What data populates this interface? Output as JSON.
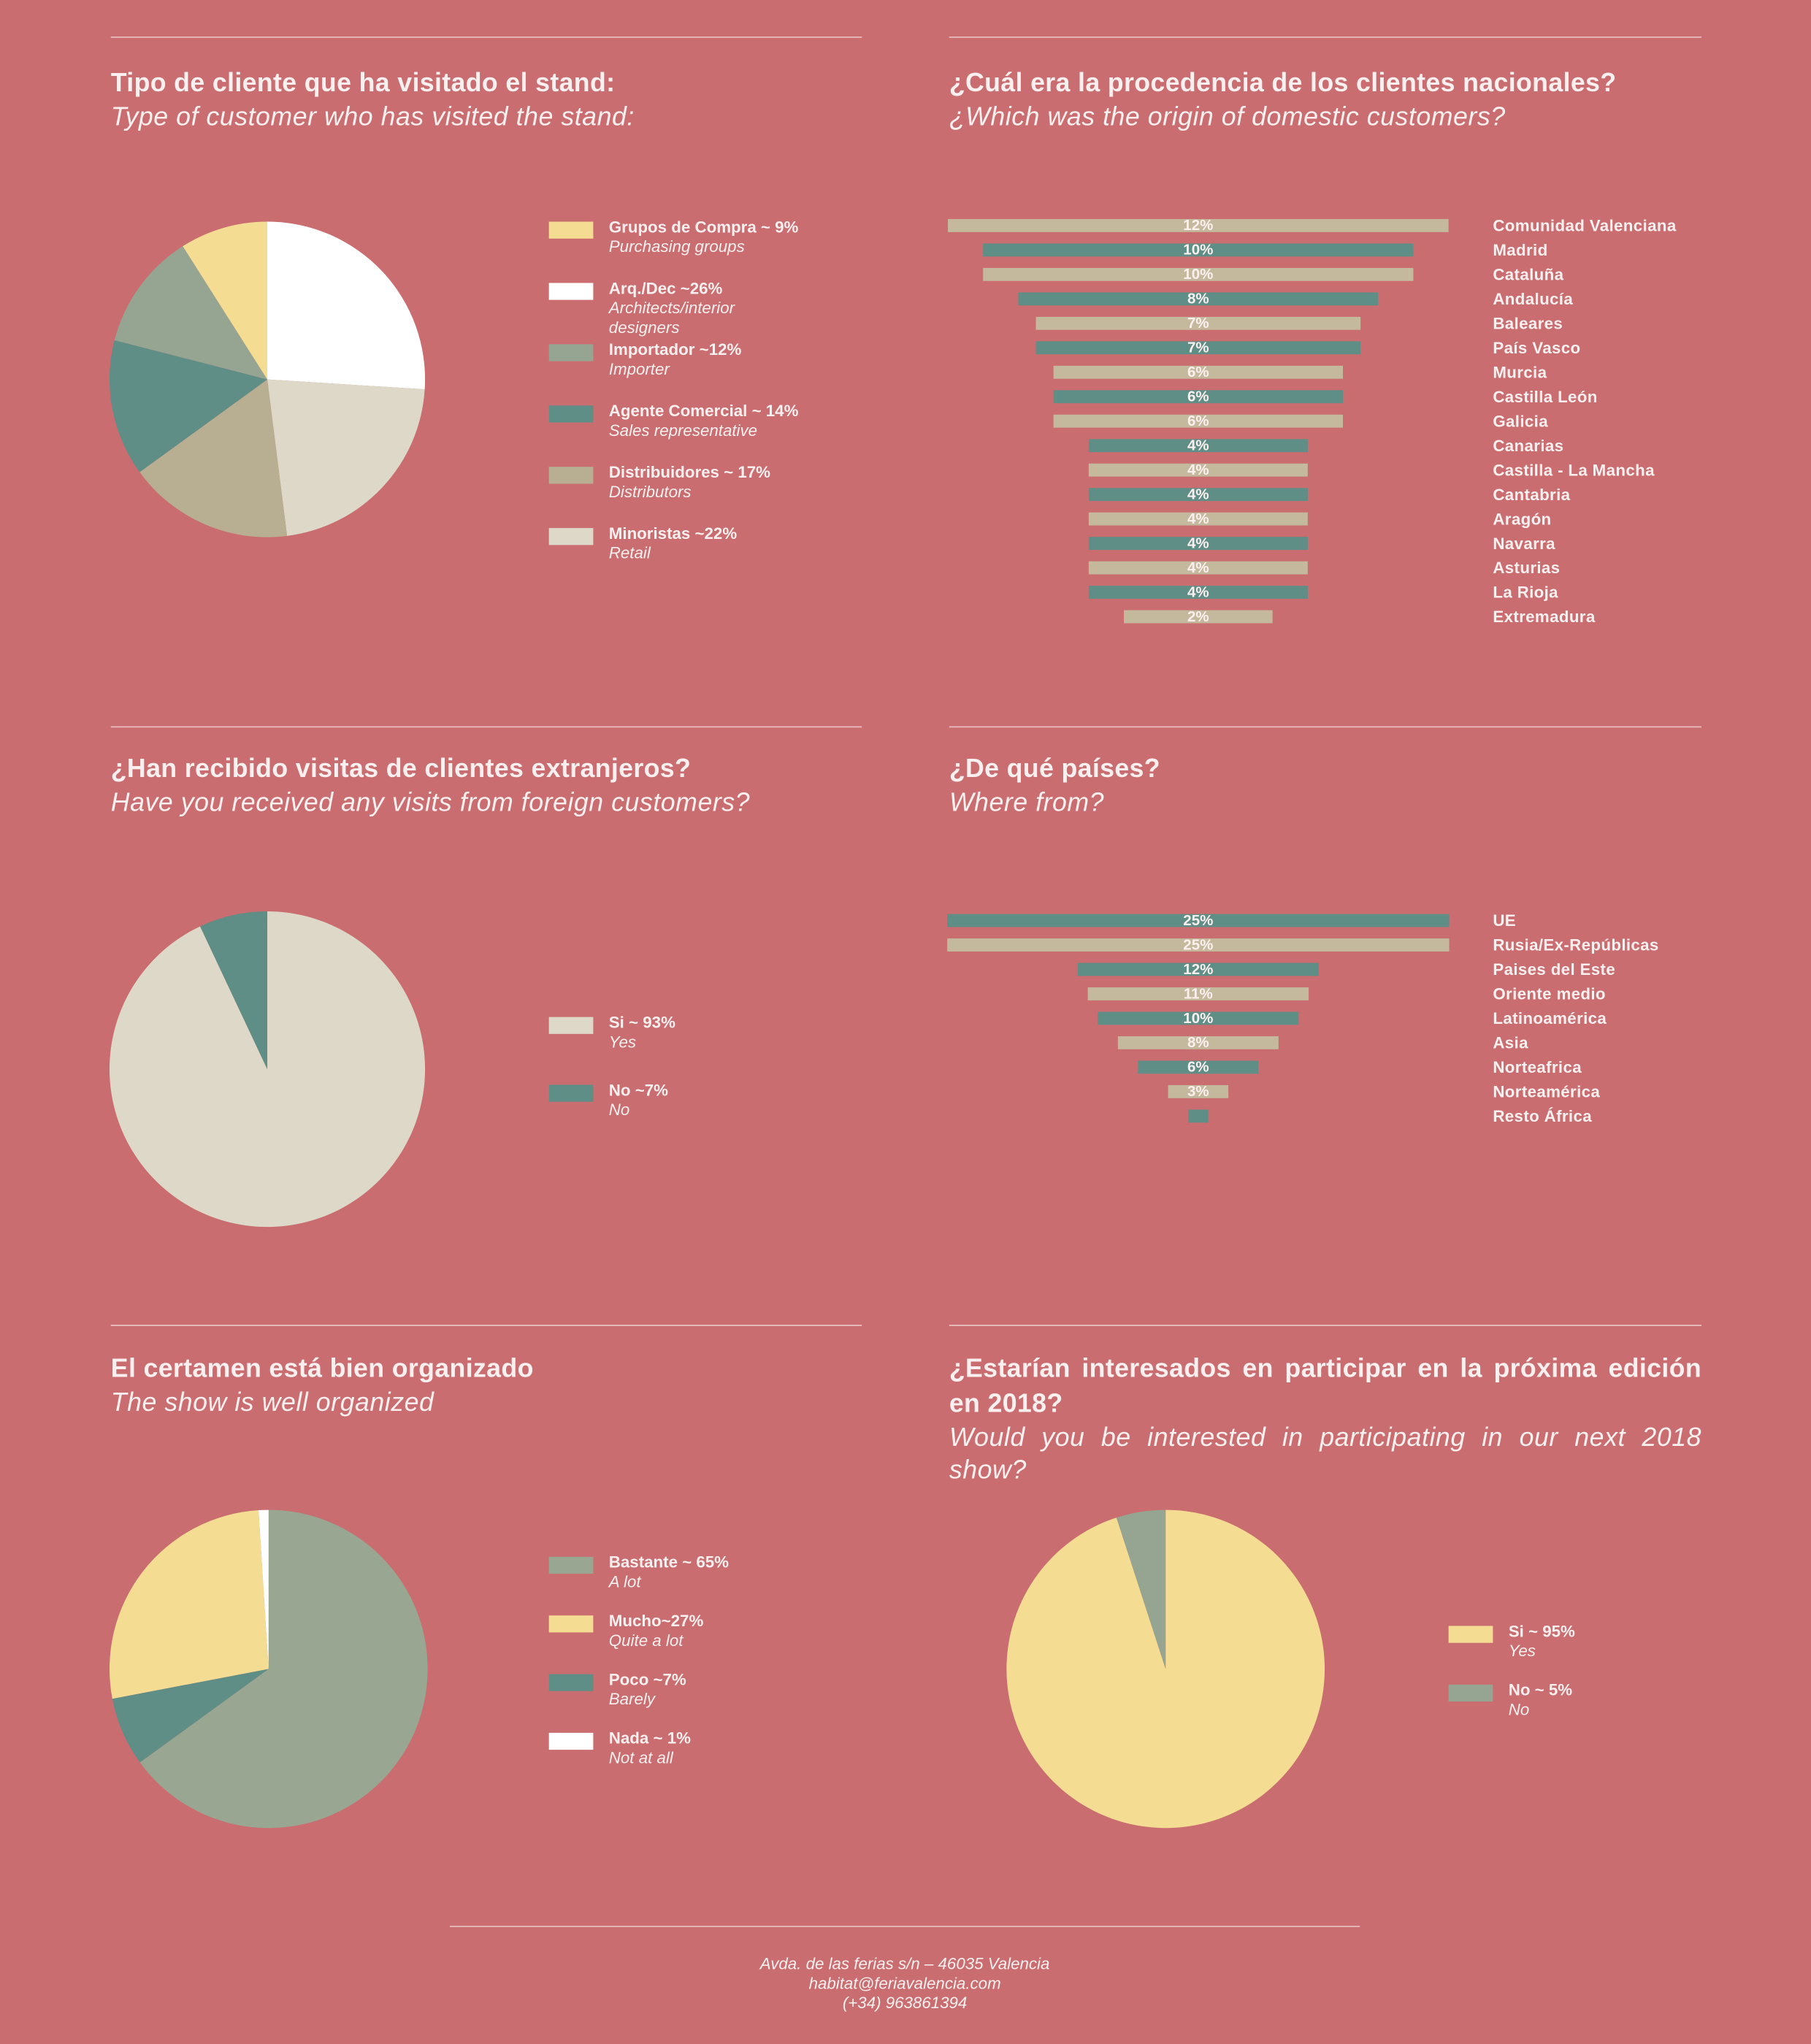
{
  "chart_data": [
    {
      "type": "pie",
      "title": "Tipo de cliente que ha visitado el stand:",
      "subtitle": "Type of customer who has visited the stand:",
      "categories": [
        "Grupos de Compra ~ 9%",
        "Arq./Dec ~26%",
        "Importador ~12%",
        "Agente Comercial ~ 14%",
        "Distribuidores ~ 17%",
        "Minoristas ~22%"
      ],
      "labels_en": [
        "Purchasing groups",
        "Architects/interior designers",
        "Importer",
        "Sales representative",
        "Distributors",
        "Retail"
      ],
      "values": [
        9,
        26,
        12,
        14,
        17,
        22
      ],
      "colors": [
        "#f5dc93",
        "#ffffff",
        "#96a592",
        "#5e8e86",
        "#b8ae92",
        "#ddd8c8"
      ]
    },
    {
      "type": "funnel",
      "title": "¿Cuál era la procedencia de los clientes nacionales?",
      "subtitle": "¿Which was the origin of domestic customers?",
      "categories": [
        "Comunidad Valenciana",
        "Madrid",
        "Cataluña",
        "Andalucía",
        "Baleares",
        "País Vasco",
        "Murcia",
        "Castilla León",
        "Galicia",
        "Canarias",
        "Castilla - La Mancha",
        "Cantabria",
        "Aragón",
        "Navarra",
        "Asturias",
        "La Rioja",
        "Extremadura"
      ],
      "values": [
        12,
        10,
        10,
        8,
        7,
        7,
        6,
        6,
        6,
        4,
        4,
        4,
        4,
        4,
        4,
        4,
        2
      ],
      "value_labels": [
        "12%",
        "10%",
        "10%",
        "8%",
        "7%",
        "7%",
        "6%",
        "6%",
        "6%",
        "4%",
        "4%",
        "4%",
        "4%",
        "4%",
        "4%",
        "4%",
        "2%"
      ],
      "colors": [
        "#c4b99c",
        "#5e8e86",
        "#c4b99c",
        "#5e8e86",
        "#c4b99c",
        "#5e8e86",
        "#c4b99c",
        "#5e8e86",
        "#c4b99c",
        "#5e8e86",
        "#c4b99c",
        "#5e8e86",
        "#c4b99c",
        "#5e8e86",
        "#c4b99c",
        "#5e8e86",
        "#c4b99c"
      ]
    },
    {
      "type": "pie",
      "title": "¿Han recibido visitas de clientes extranjeros?",
      "subtitle": "Have you received any visits from foreign customers?",
      "categories": [
        "Si ~ 93%",
        "No ~7%"
      ],
      "labels_en": [
        "Yes",
        "No"
      ],
      "values": [
        93,
        7
      ],
      "colors": [
        "#ddd8c8",
        "#5e8e86"
      ]
    },
    {
      "type": "funnel",
      "title": "¿De qué países?",
      "subtitle": "Where from?",
      "categories": [
        "UE",
        "Rusia/Ex-Repúblicas",
        "Paises del Este",
        "Oriente medio",
        "Latinoamérica",
        "Asia",
        "Norteafrica",
        "Norteamérica",
        "Resto África"
      ],
      "values": [
        25,
        25,
        12,
        11,
        10,
        8,
        6,
        3,
        1
      ],
      "value_labels": [
        "25%",
        "25%",
        "12%",
        "11%",
        "10%",
        "8%",
        "6%",
        "3%",
        null
      ],
      "colors": [
        "#5e8e86",
        "#c4b99c",
        "#5e8e86",
        "#c4b99c",
        "#5e8e86",
        "#c4b99c",
        "#5e8e86",
        "#c4b99c",
        "#5e8e86"
      ]
    },
    {
      "type": "pie",
      "title": "El certamen está bien organizado",
      "subtitle": "The show is well organized",
      "categories": [
        "Bastante ~ 65%",
        "Mucho~27%",
        "Poco ~7%",
        "Nada ~ 1%"
      ],
      "labels_en": [
        "A lot",
        "Quite a lot",
        "Barely",
        "Not at all"
      ],
      "values": [
        65,
        27,
        7,
        1
      ],
      "colors": [
        "#98a692",
        "#f5dc93",
        "#5e8e86",
        "#ffffff"
      ]
    },
    {
      "type": "pie",
      "title": "¿Estarían interesados en participar en la próxima edición en 2018?",
      "subtitle": "Would you be interested in participating in our next 2018 show?",
      "categories": [
        "Si ~ 95%",
        "No ~ 5%"
      ],
      "labels_en": [
        "Yes",
        "No"
      ],
      "values": [
        95,
        5
      ],
      "colors": [
        "#f5dc93",
        "#96a592"
      ]
    }
  ],
  "footer": {
    "lines": [
      "Avda. de las ferias s/n – 46035 Valencia",
      "habitat@feriavalencia.com",
      "(+34) 963861394"
    ]
  }
}
